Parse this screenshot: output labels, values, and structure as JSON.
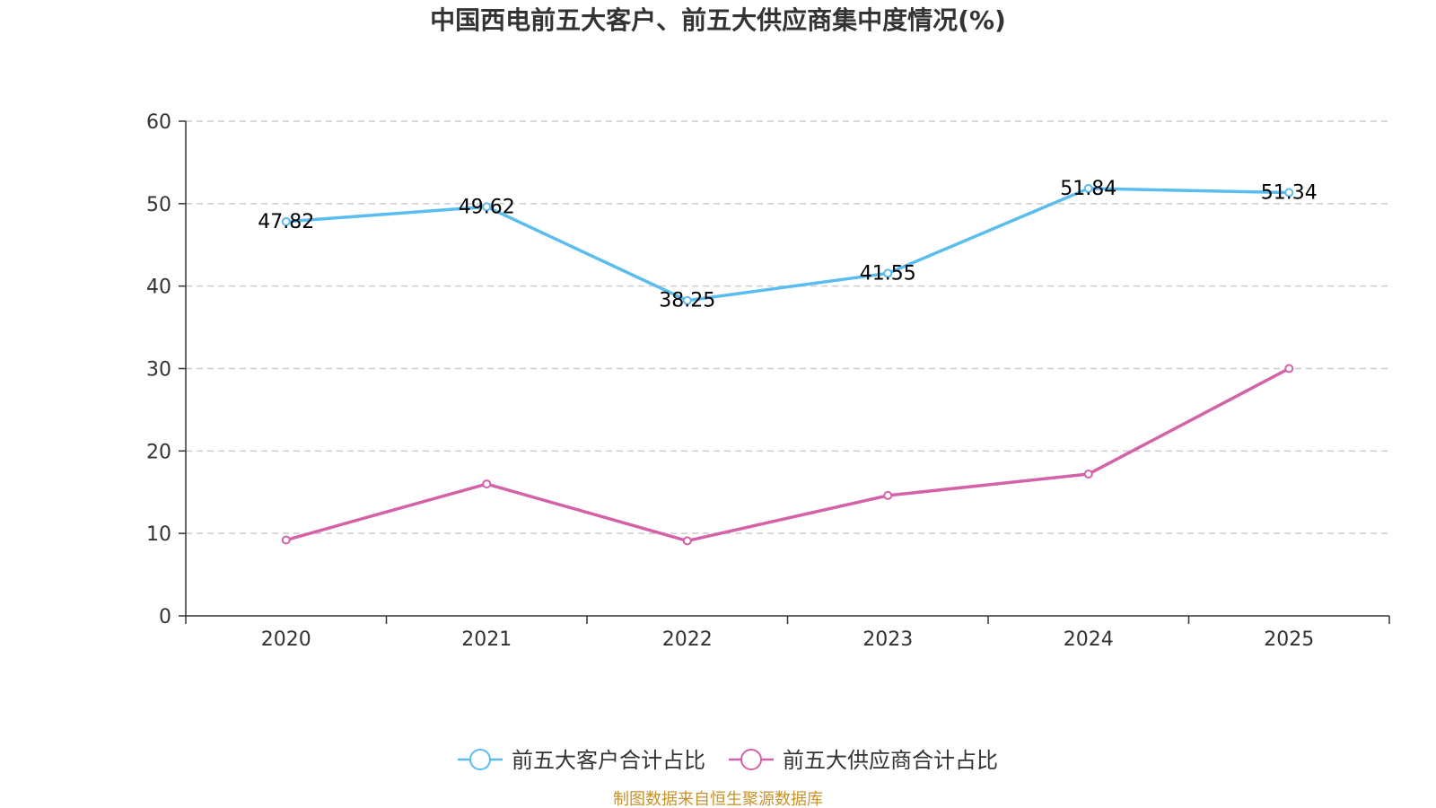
{
  "chart_data": {
    "type": "line",
    "title": "中国西电前五大客户、前五大供应商集中度情况(%)",
    "categories": [
      "2020",
      "2021",
      "2022",
      "2023",
      "2024",
      "2025"
    ],
    "series": [
      {
        "name": "前五大客户合计占比",
        "color": "#5bbcf0",
        "values": [
          47.82,
          49.62,
          38.25,
          41.55,
          51.84,
          51.34
        ],
        "labels": [
          "47.82",
          "49.62",
          "38.25",
          "41.55",
          "51.84",
          "51.34"
        ],
        "show_labels": true
      },
      {
        "name": "前五大供应商合计占比",
        "color": "#d462a8",
        "values": [
          9.2,
          16.0,
          9.1,
          14.6,
          17.2,
          30.0
        ],
        "show_labels": false
      }
    ],
    "y_ticks": [
      "0",
      "10",
      "20",
      "30",
      "40",
      "50",
      "60"
    ],
    "ylim": [
      0,
      60
    ],
    "xlabel": "",
    "ylabel": "",
    "grid": true,
    "legend_position": "bottom-center"
  },
  "source": {
    "text": "制图数据来自恒生聚源数据库",
    "color": "#c8922a"
  }
}
